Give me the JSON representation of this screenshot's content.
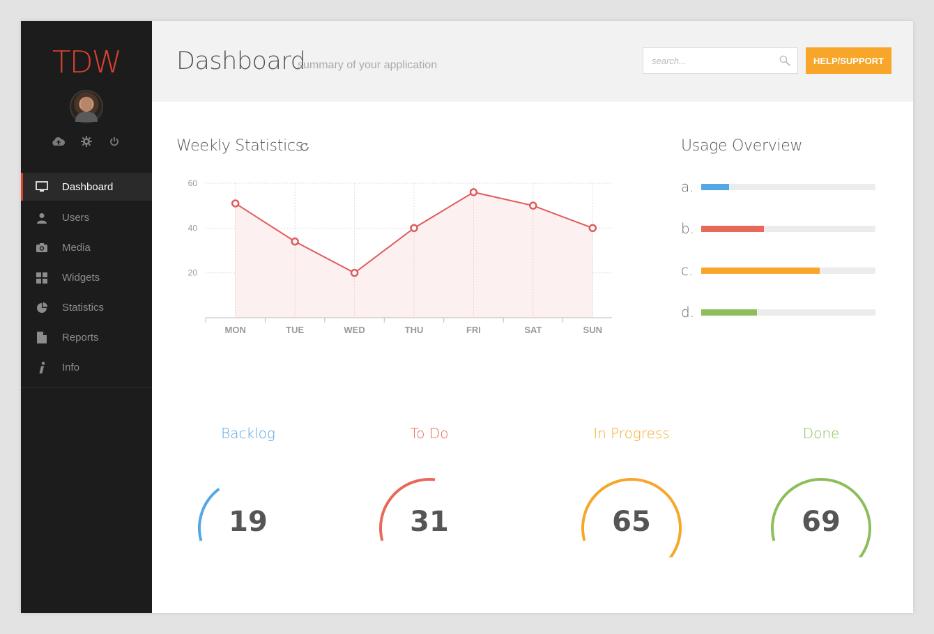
{
  "sidebar": {
    "logo": "TDW",
    "icons": [
      "cloud-upload-icon",
      "gear-icon",
      "power-icon"
    ],
    "items": [
      {
        "label": "Dashboard",
        "icon": "monitor-icon",
        "active": true
      },
      {
        "label": "Users",
        "icon": "user-icon"
      },
      {
        "label": "Media",
        "icon": "camera-icon"
      },
      {
        "label": "Widgets",
        "icon": "grid-icon"
      },
      {
        "label": "Statistics",
        "icon": "pie-chart-icon"
      },
      {
        "label": "Reports",
        "icon": "document-icon"
      },
      {
        "label": "Info",
        "icon": "info-icon"
      }
    ]
  },
  "header": {
    "title": "Dashboard",
    "subtitle": "summary of your application",
    "search_placeholder": "search...",
    "help_label": "HELP/SUPPORT"
  },
  "weekly": {
    "title": "Weekly Statistics"
  },
  "chart_data": {
    "type": "area",
    "categories": [
      "MON",
      "TUE",
      "WED",
      "THU",
      "FRI",
      "SAT",
      "SUN"
    ],
    "values": [
      51,
      34,
      20,
      40,
      56,
      50,
      40
    ],
    "yticks": [
      20,
      40,
      60
    ],
    "ylim": [
      0,
      60
    ],
    "grid": true,
    "color": "#e05b5b",
    "fill_color": "#fdf0f0"
  },
  "usage": {
    "title": "Usage Overview",
    "items": [
      {
        "label": "a.",
        "percent": 16,
        "color": "#54a6e5"
      },
      {
        "label": "b.",
        "percent": 36,
        "color": "#e8695a"
      },
      {
        "label": "c.",
        "percent": 68,
        "color": "#f7a62a"
      },
      {
        "label": "d.",
        "percent": 32,
        "color": "#8ebd5c"
      }
    ]
  },
  "gauges": [
    {
      "label": "Backlog",
      "value": "19",
      "percent": 19,
      "color": "#54a6e5"
    },
    {
      "label": "To Do",
      "value": "31",
      "percent": 31,
      "color": "#e8695a"
    },
    {
      "label": "In Progress",
      "value": "65",
      "percent": 65,
      "color": "#f7a62a"
    },
    {
      "label": "Done",
      "value": "69",
      "percent": 69,
      "color": "#8ebd5c"
    }
  ]
}
